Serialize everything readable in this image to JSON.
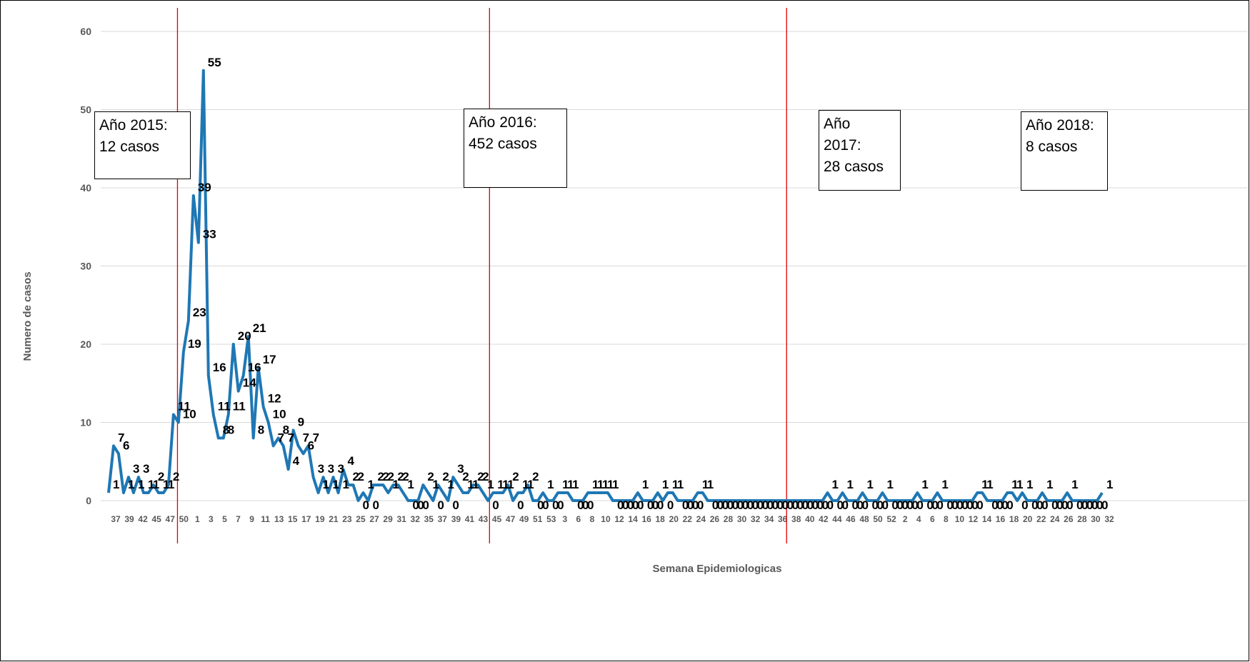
{
  "chart_data": {
    "type": "line",
    "xlabel": "Semana Epidemiologicas",
    "ylabel": "Numero de casos",
    "ylim": [
      0,
      60
    ],
    "yticks": [
      0,
      10,
      20,
      30,
      40,
      50,
      60
    ],
    "grid": true,
    "line_color": "#1f77b4",
    "divider_color": "#e00000",
    "x_tick_labels": [
      "37",
      "39",
      "42",
      "45",
      "47",
      "50",
      "1",
      "3",
      "5",
      "7",
      "9",
      "11",
      "13",
      "15",
      "17",
      "19",
      "21",
      "23",
      "25",
      "27",
      "29",
      "31",
      "32",
      "35",
      "37",
      "39",
      "41",
      "43",
      "45",
      "47",
      "49",
      "51",
      "53",
      "3",
      "6",
      "8",
      "10",
      "12",
      "14",
      "16",
      "18",
      "20",
      "22",
      "24",
      "26",
      "28",
      "30",
      "32",
      "34",
      "36",
      "38",
      "40",
      "42",
      "44",
      "46",
      "48",
      "50",
      "52",
      "2",
      "4",
      "6",
      "8",
      "10",
      "12",
      "14",
      "16",
      "18",
      "20",
      "22",
      "24",
      "26",
      "28",
      "30",
      "32"
    ],
    "series": [
      {
        "values": [
          1,
          7,
          6,
          1,
          3,
          1,
          3,
          1,
          1,
          2,
          1,
          1,
          2,
          11,
          10,
          19,
          23,
          39,
          33,
          55,
          16,
          11,
          8,
          8,
          11,
          20,
          14,
          16,
          21,
          8,
          17,
          12,
          10,
          7,
          8,
          7,
          4,
          9,
          7,
          6,
          7,
          3,
          1,
          3,
          1,
          3,
          1,
          4,
          2,
          2,
          0,
          1,
          0,
          2,
          2,
          2,
          1,
          2,
          2,
          1,
          0,
          0,
          0,
          2,
          1,
          0,
          2,
          1,
          0,
          3,
          2,
          1,
          1,
          2,
          2,
          1,
          0,
          1,
          1,
          1,
          2,
          0,
          1,
          1,
          2,
          0,
          0,
          1,
          0,
          0,
          1,
          1,
          1,
          0,
          0,
          0,
          1,
          1,
          1,
          1,
          1,
          0,
          0,
          0,
          0,
          0,
          1,
          0,
          0,
          0,
          1,
          0,
          1,
          1,
          0,
          0,
          0,
          0,
          1,
          1,
          0,
          0,
          0,
          0,
          0,
          0,
          0,
          0,
          0,
          0,
          0,
          0,
          0,
          0,
          0,
          0,
          0,
          0,
          0,
          0,
          0,
          0,
          0,
          0,
          1,
          0,
          0,
          1,
          0,
          0,
          0,
          1,
          0,
          0,
          0,
          1,
          0,
          0,
          0,
          0,
          0,
          0,
          1,
          0,
          0,
          0,
          1,
          0,
          0,
          0,
          0,
          0,
          0,
          0,
          1,
          1,
          0,
          0,
          0,
          0,
          1,
          1,
          0,
          1,
          0,
          0,
          0,
          1,
          0,
          0,
          0,
          0,
          1,
          0,
          0,
          0,
          0,
          0,
          0,
          1
        ]
      }
    ],
    "dividers_after_week_label": [
      "2015/2016",
      "2016/2017",
      "2017/2018"
    ],
    "annotations": [
      {
        "text": "Año 2015:\n12 casos"
      },
      {
        "text": "Año 2016:\n452 casos"
      },
      {
        "text": "Año\n2017:\n28 casos"
      },
      {
        "text": "Año 2018:\n8 casos"
      }
    ]
  }
}
